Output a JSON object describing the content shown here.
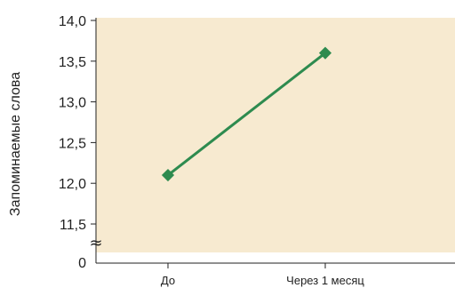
{
  "chart_data": {
    "type": "line",
    "categories": [
      "До",
      "Через 1 месяц"
    ],
    "series": [
      {
        "values": [
          12.1,
          13.6
        ]
      }
    ],
    "ylabel": "Запоминаемые слова",
    "xlabel": "",
    "ylim": [
      11.5,
      14.0
    ],
    "yticks": [
      "14,0",
      "13,5",
      "13,0",
      "12,5",
      "12,0",
      "11,5"
    ],
    "ytick_values": [
      14.0,
      13.5,
      13.0,
      12.5,
      12.0,
      11.5
    ],
    "axis_zero_label": "0",
    "axis_break_symbol": "≈",
    "grid": false,
    "colors": {
      "plot_background": "#f7ead0",
      "series": "#2e8b4f",
      "axis": "#222222"
    }
  }
}
